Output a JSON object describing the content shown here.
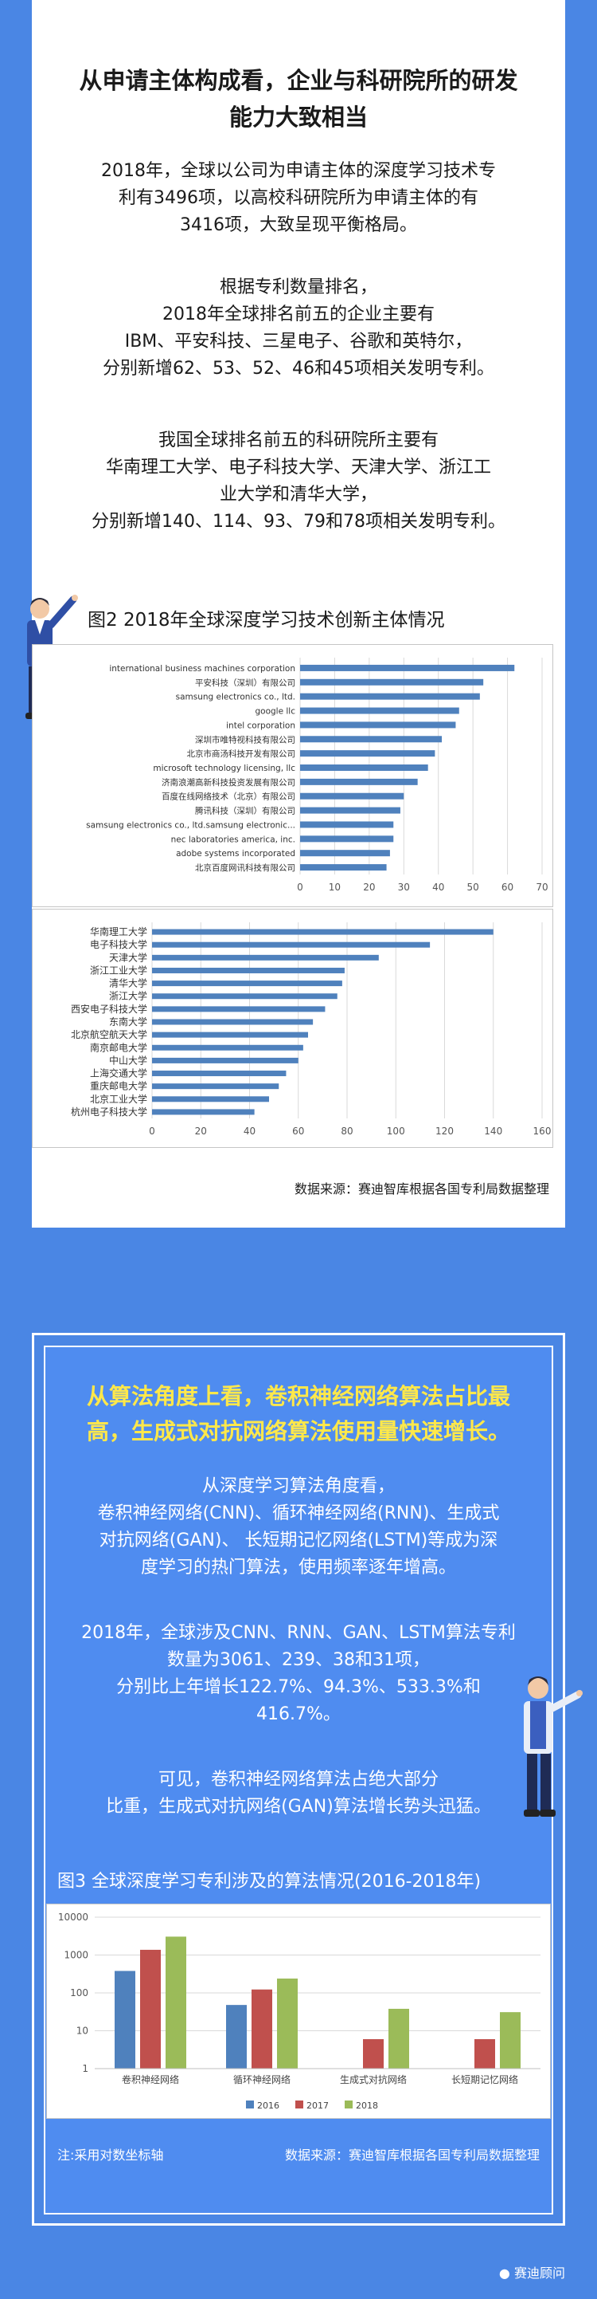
{
  "section1": {
    "heading_lines": [
      "从申请主体构成看，企业与科研院所的研发",
      "能力大致相当"
    ],
    "para1_lines": [
      "2018年，全球以公司为申请主体的深度学习技术专",
      "利有3496项，以高校科研院所为申请主体的有",
      "3416项，大致呈现平衡格局。"
    ],
    "para2_lines": [
      "根据专利数量排名，",
      "2018年全球排名前五的企业主要有",
      "IBM、平安科技、三星电子、谷歌和英特尔，",
      "分别新增62、53、52、46和45项相关发明专利。"
    ],
    "para3_lines": [
      "我国全球排名前五的科研院所主要有",
      "华南理工大学、电子科技大学、天津大学、浙江工",
      "业大学和清华大学，",
      "分别新增140、114、93、79和78项相关发明专利。"
    ],
    "figure_title": "图2  2018年全球深度学习技术创新主体情况",
    "source": "数据来源：赛迪智库根据各国专利局数据整理"
  },
  "section2": {
    "heading_lines": [
      "从算法角度上看，卷积神经网络算法占比最",
      "高，生成式对抗网络算法使用量快速增长。"
    ],
    "para1_lines": [
      "从深度学习算法角度看，",
      "卷积神经网络(CNN)、循环神经网络(RNN)、生成式",
      "对抗网络(GAN)、 长短期记忆网络(LSTM)等成为深",
      "度学习的热门算法，使用频率逐年增高。"
    ],
    "para2_lines": [
      "2018年，全球涉及CNN、RNN、GAN、LSTM算法专利",
      "数量为3061、239、38和31项，",
      "分别比上年增长122.7%、94.3%、533.3%和",
      "416.7%。"
    ],
    "para3_lines": [
      "可见，卷积神经网络算法占绝大部分",
      "比重，生成式对抗网络(GAN)算法增长势头迅猛。"
    ],
    "figure_title": "图3  全球深度学习专利涉及的算法情况(2016-2018年)",
    "note": "注:采用对数坐标轴",
    "source": "数据来源：赛迪智库根据各国专利局数据整理"
  },
  "footer": {
    "wechat_label": "赛迪顾问"
  },
  "colors": {
    "background": "#4a86e4",
    "bar": "#4f81bd",
    "heading2": "#ffe84a",
    "series_2016": "#4f81bd",
    "series_2017": "#c0504d",
    "series_2018": "#9bbb59"
  },
  "chart_data": [
    {
      "type": "bar",
      "orientation": "horizontal",
      "categories": [
        "international business machines corporation",
        "平安科技（深圳）有限公司",
        "samsung electronics co., ltd.",
        "google llc",
        "intel corporation",
        "深圳市唯特视科技有限公司",
        "北京市商汤科技开发有限公司",
        "microsoft technology licensing, llc",
        "济南浪潮高新科技投资发展有限公司",
        "百度在线网络技术（北京）有限公司",
        "腾讯科技（深圳）有限公司",
        "samsung electronics co., ltd.samsung electronic...",
        "nec laboratories america, inc.",
        "adobe systems incorporated",
        "北京百度网讯科技有限公司"
      ],
      "values": [
        62,
        53,
        52,
        46,
        45,
        41,
        39,
        37,
        34,
        30,
        29,
        27,
        27,
        26,
        25
      ],
      "xlim": [
        0,
        70
      ],
      "xticks": [
        0,
        10,
        20,
        30,
        40,
        50,
        60,
        70
      ],
      "grid": true
    },
    {
      "type": "bar",
      "orientation": "horizontal",
      "categories": [
        "华南理工大学",
        "电子科技大学",
        "天津大学",
        "浙江工业大学",
        "清华大学",
        "浙江大学",
        "西安电子科技大学",
        "东南大学",
        "北京航空航天大学",
        "南京邮电大学",
        "中山大学",
        "上海交通大学",
        "重庆邮电大学",
        "北京工业大学",
        "杭州电子科技大学"
      ],
      "values": [
        140,
        114,
        93,
        79,
        78,
        76,
        71,
        66,
        64,
        62,
        60,
        55,
        52,
        48,
        42
      ],
      "xlim": [
        0,
        160
      ],
      "xticks": [
        0,
        20,
        40,
        60,
        80,
        100,
        120,
        140,
        160
      ],
      "grid": true
    },
    {
      "type": "bar",
      "categories": [
        "卷积神经网络",
        "循环神经网络",
        "生成式对抗网络",
        "长短期记忆网络"
      ],
      "series": [
        {
          "name": "2016",
          "values": [
            380,
            48,
            0,
            0
          ]
        },
        {
          "name": "2017",
          "values": [
            1374,
            123,
            6,
            6
          ]
        },
        {
          "name": "2018",
          "values": [
            3061,
            239,
            38,
            31
          ]
        }
      ],
      "yscale": "log",
      "ylim": [
        1,
        10000
      ],
      "yticks": [
        1,
        10,
        100,
        1000,
        10000
      ],
      "legend": "bottom",
      "grid": true
    }
  ]
}
